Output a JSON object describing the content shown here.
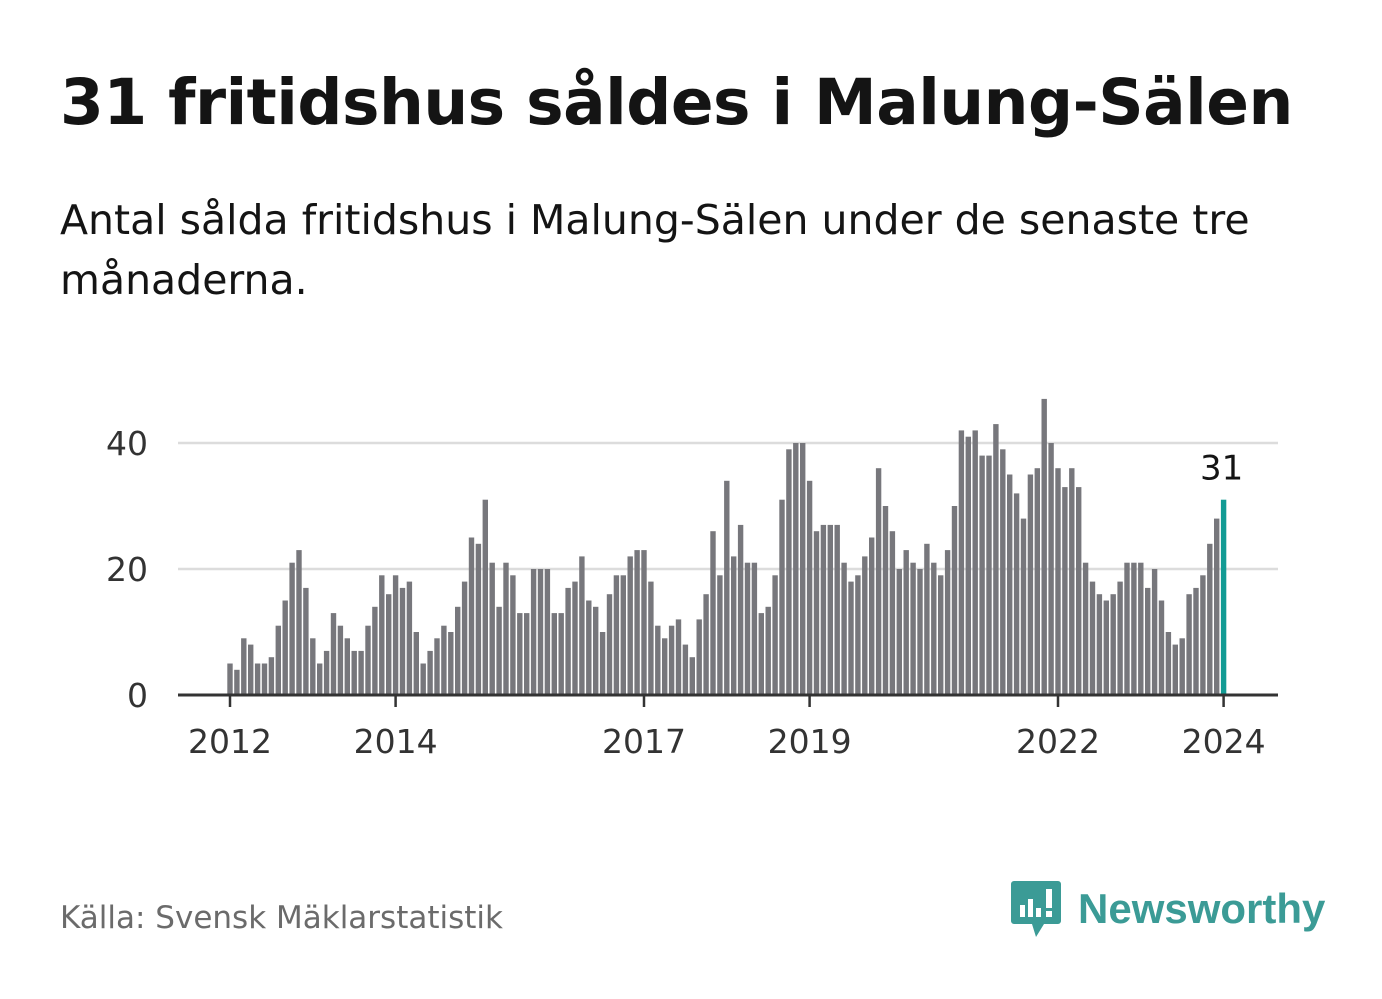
{
  "title": "31 fritidshus såldes i Malung-Sälen",
  "subtitle": "Antal sålda fritidshus i Malung-Sälen under de senaste tre månaderna.",
  "source": "Källa: Svensk Mäklarstatistik",
  "brand": {
    "name": "Newsworthy",
    "icon": "newsworthy-logo-icon",
    "color": "#3b9b96"
  },
  "colors": {
    "bar": "#77777c",
    "highlight": "#129b94",
    "grid": "#dcdcdc",
    "axis": "#333333"
  },
  "chart_data": {
    "type": "bar",
    "title": "31 fritidshus såldes i Malung-Sälen",
    "xlabel": "",
    "ylabel": "",
    "ylim": [
      0,
      47
    ],
    "yticks": [
      0,
      20,
      40
    ],
    "grid": true,
    "x_tick_labels": [
      {
        "label": "2012",
        "index": 0
      },
      {
        "label": "2014",
        "index": 24
      },
      {
        "label": "2017",
        "index": 60
      },
      {
        "label": "2019",
        "index": 84
      },
      {
        "label": "2022",
        "index": 120
      },
      {
        "label": "2024",
        "index": 144
      }
    ],
    "highlight": {
      "index": 144,
      "value": 31,
      "label": "31"
    },
    "values": [
      5,
      4,
      9,
      8,
      5,
      5,
      6,
      11,
      15,
      21,
      23,
      17,
      9,
      5,
      7,
      13,
      11,
      9,
      7,
      7,
      11,
      14,
      19,
      16,
      19,
      17,
      18,
      10,
      5,
      7,
      9,
      11,
      10,
      14,
      18,
      25,
      24,
      31,
      21,
      14,
      21,
      19,
      13,
      13,
      20,
      20,
      20,
      13,
      13,
      17,
      18,
      22,
      15,
      14,
      10,
      16,
      19,
      19,
      22,
      23,
      23,
      18,
      11,
      9,
      11,
      12,
      8,
      6,
      12,
      16,
      26,
      19,
      34,
      22,
      27,
      21,
      21,
      13,
      14,
      19,
      31,
      39,
      40,
      40,
      34,
      26,
      27,
      27,
      27,
      21,
      18,
      19,
      22,
      25,
      36,
      30,
      26,
      20,
      23,
      21,
      20,
      24,
      21,
      19,
      23,
      30,
      42,
      41,
      42,
      38,
      38,
      43,
      39,
      35,
      32,
      28,
      35,
      36,
      47,
      40,
      36,
      33,
      36,
      33,
      21,
      18,
      16,
      15,
      16,
      18,
      21,
      21,
      21,
      17,
      20,
      15,
      10,
      8,
      9,
      16,
      17,
      19,
      24,
      28,
      31
    ]
  }
}
